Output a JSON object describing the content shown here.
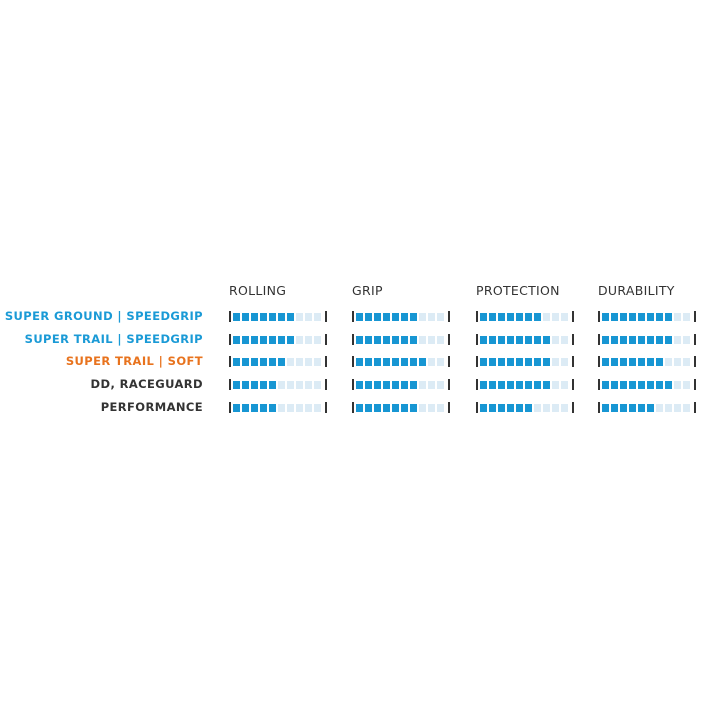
{
  "chart_data": {
    "type": "table",
    "title": "",
    "max_segments": 10,
    "columns": [
      "ROLLING",
      "GRIP",
      "PROTECTION",
      "DURABILITY"
    ],
    "rows": [
      {
        "label": "SUPER GROUND | SPEEDGRIP",
        "color": "#1a9ad6",
        "values": [
          7,
          7,
          7,
          8
        ]
      },
      {
        "label": "SUPER TRAIL | SPEEDGRIP",
        "color": "#1a9ad6",
        "values": [
          7,
          7,
          8,
          8
        ]
      },
      {
        "label": "SUPER TRAIL | SOFT",
        "color": "#e8731e",
        "values": [
          6,
          8,
          8,
          7
        ]
      },
      {
        "label": "DD, RACEGUARD",
        "color": "#333333",
        "values": [
          5,
          7,
          8,
          8
        ]
      },
      {
        "label": "PERFORMANCE",
        "color": "#333333",
        "values": [
          5,
          7,
          6,
          6
        ]
      }
    ],
    "filled_color": "#1796d3",
    "empty_color": "#dcebf5"
  }
}
